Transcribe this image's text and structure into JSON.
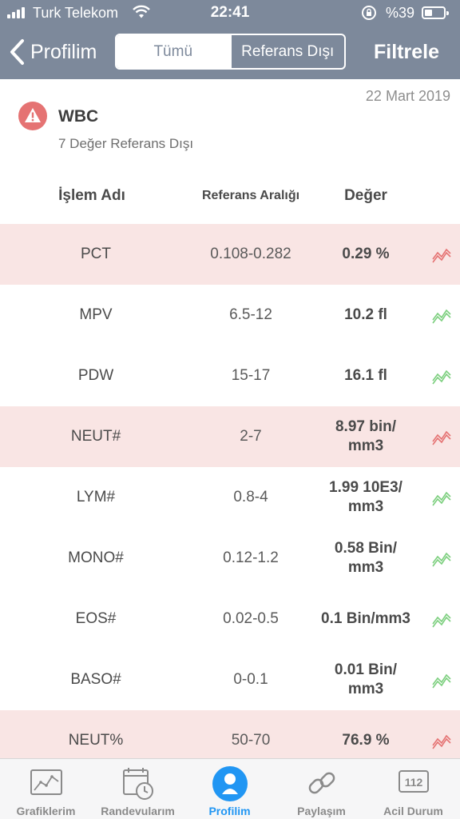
{
  "status_bar": {
    "carrier": "Turk Telekom",
    "time": "22:41",
    "battery": "%39"
  },
  "nav": {
    "back_label": "Profilim",
    "segments": [
      "Tümü",
      "Referans Dışı"
    ],
    "active_segment": "Tümü",
    "filter_label": "Filtrele"
  },
  "summary": {
    "date": "22 Mart 2019",
    "test": "WBC",
    "subtitle": "7 Değer Referans Dışı"
  },
  "table": {
    "headers": {
      "name": "İşlem Adı",
      "range": "Referans Aralığı",
      "value": "Değer"
    },
    "rows": [
      {
        "name": "PCT",
        "range": "0.108-0.282",
        "value": "0.29 %",
        "out_of_range": true,
        "trend_color": "#e57373"
      },
      {
        "name": "MPV",
        "range": "6.5-12",
        "value": "10.2 fl",
        "out_of_range": false,
        "trend_color": "#7ccf7e"
      },
      {
        "name": "PDW",
        "range": "15-17",
        "value": "16.1 fl",
        "out_of_range": false,
        "trend_color": "#7ccf7e"
      },
      {
        "name": "NEUT#",
        "range": "2-7",
        "value": "8.97 bin/\nmm3",
        "out_of_range": true,
        "trend_color": "#e57373"
      },
      {
        "name": "LYM#",
        "range": "0.8-4",
        "value": "1.99 10E3/\nmm3",
        "out_of_range": false,
        "trend_color": "#7ccf7e"
      },
      {
        "name": "MONO#",
        "range": "0.12-1.2",
        "value": "0.58 Bin/\nmm3",
        "out_of_range": false,
        "trend_color": "#7ccf7e"
      },
      {
        "name": "EOS#",
        "range": "0.02-0.5",
        "value": "0.1 Bin/mm3",
        "out_of_range": false,
        "trend_color": "#7ccf7e"
      },
      {
        "name": "BASO#",
        "range": "0-0.1",
        "value": "0.01 Bin/\nmm3",
        "out_of_range": false,
        "trend_color": "#7ccf7e"
      },
      {
        "name": "NEUT%",
        "range": "50-70",
        "value": "76.9 %",
        "out_of_range": true,
        "trend_color": "#e57373"
      }
    ]
  },
  "tabbar": {
    "items": [
      {
        "label": "Grafiklerim",
        "icon": "chart-icon"
      },
      {
        "label": "Randevularım",
        "icon": "calendar-clock-icon"
      },
      {
        "label": "Profilim",
        "icon": "person-icon",
        "active": true
      },
      {
        "label": "Paylaşım",
        "icon": "link-icon"
      },
      {
        "label": "Acil Durum",
        "icon": "emergency-112-icon",
        "badge": "112"
      }
    ]
  },
  "colors": {
    "header_bg": "#7d899b",
    "flag_row_bg": "#f9e5e4",
    "warning_red": "#e57373",
    "ok_green": "#7ccf7e",
    "active_tab": "#2196f3"
  }
}
